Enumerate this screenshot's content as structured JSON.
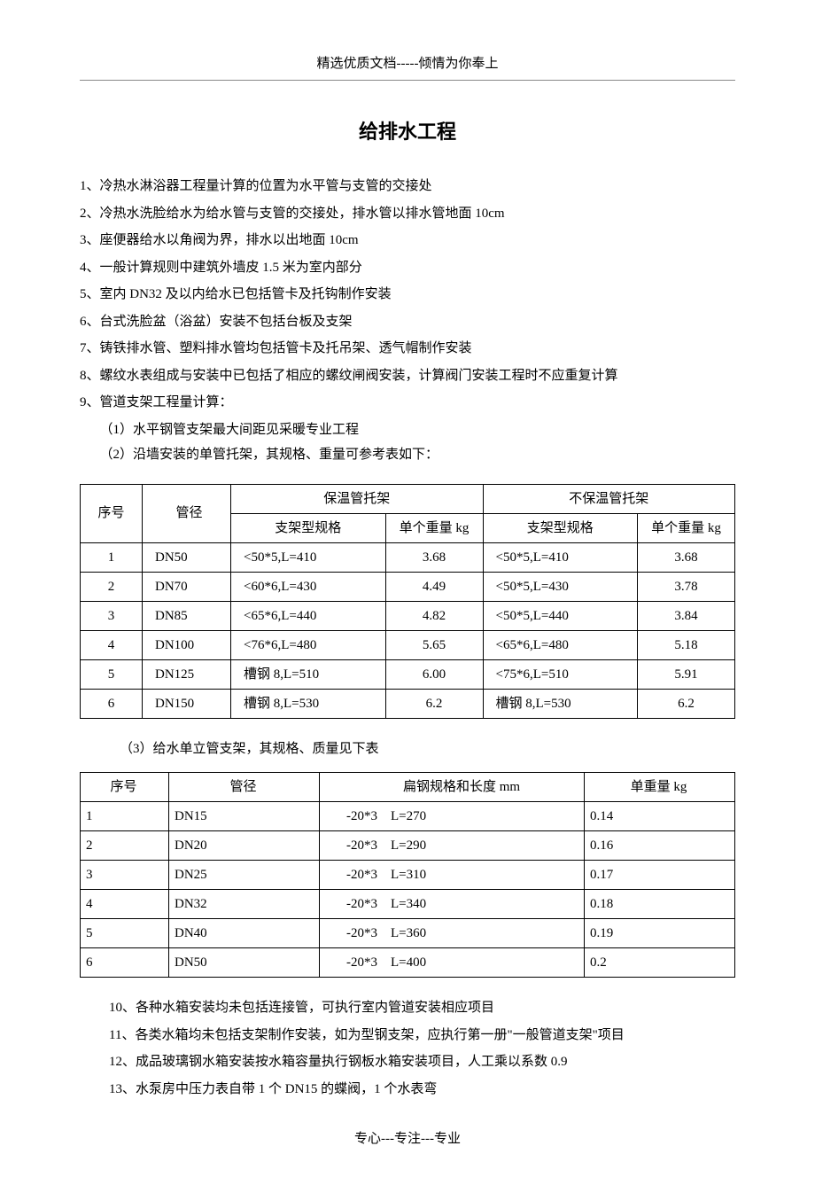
{
  "header": "精选优质文档-----倾情为你奉上",
  "title": "给排水工程",
  "paras_top": [
    "1、冷热水淋浴器工程量计算的位置为水平管与支管的交接处",
    "2、冷热水洗脸给水为给水管与支管的交接处，排水管以排水管地面 10cm",
    "3、座便器给水以角阀为界，排水以出地面 10cm",
    "4、一般计算规则中建筑外墙皮 1.5 米为室内部分",
    "5、室内 DN32 及以内给水已包括管卡及托钩制作安装",
    "6、台式洗脸盆（浴盆）安装不包括台板及支架",
    "7、铸铁排水管、塑料排水管均包括管卡及托吊架、透气帽制作安装",
    "8、螺纹水表组成与安装中已包括了相应的螺纹闸阀安装，计算阀门安装工程时不应重复计算",
    "9、管道支架工程量计算："
  ],
  "subs_9": [
    "（1）水平钢管支架最大间距见采暖专业工程",
    "（2）沿墙安装的单管托架，其规格、重量可参考表如下："
  ],
  "table1": {
    "headers": {
      "seq": "序号",
      "dia": "管径",
      "g1": "保温管托架",
      "g2": "不保温管托架",
      "spec": "支架型规格",
      "wt": "单个重量 kg"
    },
    "rows": [
      {
        "seq": "1",
        "dia": "DN50",
        "s1": "<50*5,L=410",
        "w1": "3.68",
        "s2": "<50*5,L=410",
        "w2": "3.68"
      },
      {
        "seq": "2",
        "dia": "DN70",
        "s1": "<60*6,L=430",
        "w1": "4.49",
        "s2": "<50*5,L=430",
        "w2": "3.78"
      },
      {
        "seq": "3",
        "dia": "DN85",
        "s1": "<65*6,L=440",
        "w1": "4.82",
        "s2": "<50*5,L=440",
        "w2": "3.84"
      },
      {
        "seq": "4",
        "dia": "DN100",
        "s1": "<76*6,L=480",
        "w1": "5.65",
        "s2": "<65*6,L=480",
        "w2": "5.18"
      },
      {
        "seq": "5",
        "dia": "DN125",
        "s1": "槽钢  8,L=510",
        "w1": "6.00",
        "s2": "<75*6,L=510",
        "w2": "5.91"
      },
      {
        "seq": "6",
        "dia": "DN150",
        "s1": "槽钢  8,L=530",
        "w1": "6.2",
        "s2": "槽钢  8,L=530",
        "w2": "6.2"
      }
    ]
  },
  "mid_note": "（3）给水单立管支架，其规格、质量见下表",
  "table2": {
    "headers": {
      "seq": "序号",
      "dia": "管径",
      "spec": "扁钢规格和长度 mm",
      "wt": "单重量 kg"
    },
    "rows": [
      {
        "seq": "1",
        "dia": "DN15",
        "spec": "-20*3    L=270",
        "wt": "0.14"
      },
      {
        "seq": "2",
        "dia": "DN20",
        "spec": "-20*3    L=290",
        "wt": "0.16"
      },
      {
        "seq": "3",
        "dia": "DN25",
        "spec": "-20*3    L=310",
        "wt": "0.17"
      },
      {
        "seq": "4",
        "dia": "DN32",
        "spec": "-20*3    L=340",
        "wt": "0.18"
      },
      {
        "seq": "5",
        "dia": "DN40",
        "spec": "-20*3    L=360",
        "wt": "0.19"
      },
      {
        "seq": "6",
        "dia": "DN50",
        "spec": "-20*3    L=400",
        "wt": "0.2"
      }
    ]
  },
  "paras_bottom": [
    "10、各种水箱安装均未包括连接管，可执行室内管道安装相应项目",
    "11、各类水箱均未包括支架制作安装，如为型钢支架，应执行第一册\"一般管道支架\"项目",
    "12、成品玻璃钢水箱安装按水箱容量执行钢板水箱安装项目，人工乘以系数 0.9",
    "13、水泵房中压力表自带 1 个 DN15 的蝶阀，1 个水表弯"
  ],
  "footer": "专心---专注---专业"
}
